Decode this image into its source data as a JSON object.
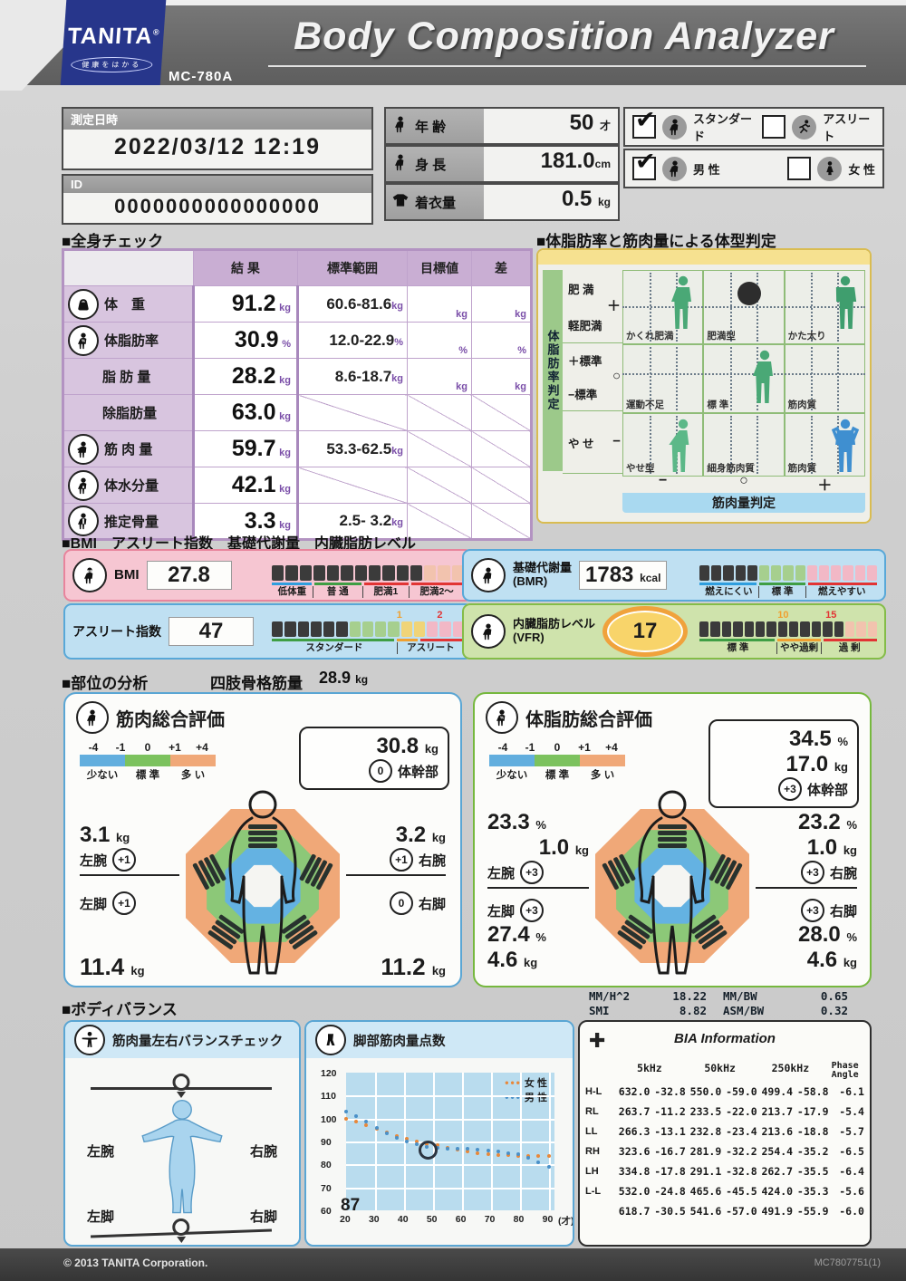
{
  "header": {
    "brand": "TANITA",
    "reg": "®",
    "tagline": "健康をはかる",
    "title": "Body Composition Analyzer",
    "model": "MC-780A"
  },
  "meta": {
    "datetime_label": "測定日時",
    "datetime": "2022/03/12  12:19",
    "id_label": "ID",
    "id": "0000000000000000",
    "age_label": "年 齢",
    "age": "50",
    "age_unit": "才",
    "height_label": "身 長",
    "height": "181.0",
    "height_unit": "cm",
    "clothes_label": "着衣量",
    "clothes": "0.5",
    "clothes_unit": "kg",
    "mode_standard": "スタンダード",
    "mode_athlete": "アスリート",
    "male": "男 性",
    "female": "女 性"
  },
  "whole_body": {
    "title": "■全身チェック",
    "headers": [
      "結 果",
      "標準範囲",
      "目標値",
      "差"
    ],
    "rows": [
      {
        "icon": "weight-icon",
        "label": "体　重",
        "result": "91.2",
        "unit": "kg",
        "range": "60.6-81.6",
        "has_units": true
      },
      {
        "icon": "fat-icon",
        "label": "体脂肪率",
        "result": "30.9",
        "unit": "%",
        "range": "12.0-22.9",
        "has_units": true
      },
      {
        "icon": null,
        "dashed": true,
        "label": "脂 肪 量",
        "result": "28.2",
        "unit": "kg",
        "range": "8.6-18.7",
        "has_units": true
      },
      {
        "icon": null,
        "label": "除脂肪量",
        "result": "63.0",
        "unit": "kg",
        "range": null,
        "has_units": false
      },
      {
        "icon": "muscle-icon",
        "label": "筋 肉 量",
        "result": "59.7",
        "unit": "kg",
        "range": "53.3-62.5",
        "has_units": false
      },
      {
        "icon": "water-icon",
        "label": "体水分量",
        "result": "42.1",
        "unit": "kg",
        "range": null,
        "has_units": false
      },
      {
        "icon": "bone-icon",
        "label": "推定骨量",
        "result": "3.3",
        "unit": "kg",
        "range": "2.5- 3.2",
        "has_units": false
      }
    ]
  },
  "body_type": {
    "title": "■体脂肪率と筋肉量による体型判定",
    "y_axis": "体脂肪率判定",
    "y_rows": [
      {
        "labels": [
          "肥 満",
          "軽肥満"
        ],
        "sign": "＋"
      },
      {
        "labels": [
          "＋標準",
          "−標準"
        ],
        "sign": "○"
      },
      {
        "labels": [
          "や せ"
        ],
        "sign": "−"
      }
    ],
    "cells": [
      {
        "label": "かくれ肥満",
        "fig": "stand-green"
      },
      {
        "label": "肥満型",
        "dot": true
      },
      {
        "label": "かた太り",
        "fig": "strong-green"
      },
      {
        "label": "運動不足"
      },
      {
        "label": "標 準",
        "fig": "stand-green"
      },
      {
        "label": "筋肉質"
      },
      {
        "label": "やせ型",
        "fig": "thin-green"
      },
      {
        "label": "細身筋肉質"
      },
      {
        "label": "筋肉質",
        "fig": "flex-blue"
      }
    ],
    "x_signs": [
      "−",
      "○",
      "＋"
    ],
    "x_axis": "筋肉量判定"
  },
  "indices": {
    "section_title": "■BMI　アスリート指数　基礎代謝量　内臓脂肪レベル",
    "bmi": {
      "label": "BMI",
      "value": "27.8",
      "bar": {
        "segments": [
          [
            "#3b3b3b",
            11
          ],
          [
            "#f2c3ae",
            3
          ]
        ],
        "strips": [
          [
            "#2f9ede",
            3
          ],
          [
            "#3f9e44",
            3.6
          ],
          [
            "#e23434",
            3.4
          ],
          [
            "#e23434",
            4
          ]
        ],
        "labels": [
          {
            "t": "低体重",
            "f": 3
          },
          {
            "t": "普 通",
            "f": 3.6
          },
          {
            "t": "肥満1",
            "f": 3.4
          },
          {
            "t": "肥満2～",
            "f": 4
          }
        ],
        "markers": []
      }
    },
    "athlete": {
      "label": "アスリート指数",
      "value": "47",
      "bar": {
        "segments": [
          [
            "#3b3b3b",
            6
          ],
          [
            "#a6cf8e",
            4
          ],
          [
            "#f0d478",
            2
          ],
          [
            "#f2b8c6",
            3
          ]
        ],
        "strips": [
          [
            "#3f9e44",
            9.8
          ],
          [
            "#f0a030",
            1.7
          ],
          [
            "#e23434",
            3.5
          ]
        ],
        "labels": [
          {
            "t": "スタンダード",
            "f": 9.8
          },
          {
            "t": "アスリート",
            "f": 5.2
          }
        ],
        "markers": [
          {
            "t": "1",
            "c": "#f0a030",
            "l": "65%"
          },
          {
            "t": "2",
            "c": "#e23434",
            "l": "86%"
          }
        ]
      }
    },
    "bmr": {
      "label": "基礎代謝量",
      "sublabel": "(BMR)",
      "value": "1783",
      "unit": "kcal",
      "bar": {
        "segments": [
          [
            "#3b3b3b",
            5
          ],
          [
            "#a6cf8e",
            4
          ],
          [
            "#f2b8c6",
            6
          ]
        ],
        "strips": [
          [
            "#2f9ede",
            5
          ],
          [
            "#3f9e44",
            4
          ],
          [
            "#e23434",
            6
          ]
        ],
        "labels": [
          {
            "t": "燃えにくい",
            "f": 5
          },
          {
            "t": "標 準",
            "f": 4
          },
          {
            "t": "燃えやすい",
            "f": 6
          }
        ],
        "markers": []
      }
    },
    "vfr": {
      "label": "内臓脂肪レベル",
      "sublabel": "(VFR)",
      "value": "17",
      "bar": {
        "segments": [
          [
            "#3b3b3b",
            13
          ],
          [
            "#f2c3ae",
            3
          ]
        ],
        "strips": [
          [
            "#3f9e44",
            7
          ],
          [
            "#f0a030",
            4
          ],
          [
            "#e23434",
            5
          ]
        ],
        "labels": [
          {
            "t": "標 準",
            "f": 7
          },
          {
            "t": "やや過剰",
            "f": 4
          },
          {
            "t": "過 剰",
            "f": 5
          }
        ],
        "markers": [
          {
            "t": "10",
            "c": "#f0a030",
            "l": "44%"
          },
          {
            "t": "15",
            "c": "#e23434",
            "l": "71%"
          }
        ]
      }
    }
  },
  "segmental": {
    "section_title": "■部位の分析",
    "asmm_label": "四肢骨格筋量",
    "asmm_value": "28.9",
    "asmm_unit": "kg",
    "legend": {
      "ticks": [
        "-4",
        "-1",
        "0",
        "+1",
        "+4"
      ],
      "labels": [
        "少ない",
        "標 準",
        "多 い"
      ]
    },
    "muscle": {
      "title": "筋肉総合評価",
      "trunk": {
        "value": "30.8",
        "unit": "kg",
        "score": "0",
        "label": "体幹部"
      },
      "left_arm": {
        "value": "3.1",
        "unit": "kg",
        "score": "+1",
        "label": "左腕"
      },
      "right_arm": {
        "value": "3.2",
        "unit": "kg",
        "score": "+1",
        "label": "右腕"
      },
      "left_leg": {
        "value": "11.4",
        "unit": "kg",
        "score": "+1",
        "label": "左脚"
      },
      "right_leg": {
        "value": "11.2",
        "unit": "kg",
        "score": "0",
        "label": "右脚"
      }
    },
    "fat": {
      "title": "体脂肪総合評価",
      "trunk": {
        "pct": "34.5",
        "pct_unit": "%",
        "value": "17.0",
        "unit": "kg",
        "score": "+3",
        "label": "体幹部"
      },
      "left_arm": {
        "pct": "23.3",
        "pct_unit": "%",
        "value": "1.0",
        "unit": "kg",
        "score": "+3",
        "label": "左腕"
      },
      "right_arm": {
        "pct": "23.2",
        "pct_unit": "%",
        "value": "1.0",
        "unit": "kg",
        "score": "+3",
        "label": "右腕"
      },
      "left_leg": {
        "pct": "27.4",
        "pct_unit": "%",
        "value": "4.6",
        "unit": "kg",
        "score": "+3",
        "label": "左脚"
      },
      "right_leg": {
        "pct": "28.0",
        "pct_unit": "%",
        "value": "4.6",
        "unit": "kg",
        "score": "+3",
        "label": "右脚"
      }
    },
    "stats": {
      "r1": [
        "MM/H^2",
        "18.22",
        "MM/BW",
        "0.65"
      ],
      "r2": [
        "SMI",
        "8.82",
        "ASM/BW",
        "0.32"
      ]
    }
  },
  "balance": {
    "section_title": "■ボディバランス",
    "title": "筋肉量左右バランスチェック",
    "left_arm": "左腕",
    "right_arm": "右腕",
    "left_leg": "左脚",
    "right_leg": "右脚"
  },
  "chart_data": {
    "type": "scatter",
    "title": "脚部筋肉量点数",
    "score": "87",
    "xlabel": "(才)",
    "x_ticks": [
      20,
      30,
      40,
      50,
      60,
      70,
      80,
      90
    ],
    "y_ticks": [
      60,
      70,
      80,
      90,
      100,
      110,
      120
    ],
    "xlim": [
      20,
      92
    ],
    "ylim": [
      60,
      120
    ],
    "grid": true,
    "legend_position": "top-right",
    "series": [
      {
        "name": "女 性",
        "color": "#e8883a",
        "points": [
          [
            20,
            100
          ],
          [
            23.5,
            98.5
          ],
          [
            27,
            97
          ],
          [
            30.5,
            95.5
          ],
          [
            34,
            94
          ],
          [
            37.5,
            92.5
          ],
          [
            41,
            91
          ],
          [
            44.5,
            90
          ],
          [
            48,
            89
          ],
          [
            51.5,
            88.3
          ],
          [
            55,
            87.2
          ],
          [
            58.5,
            86.3
          ],
          [
            62,
            85.6
          ],
          [
            65.5,
            85
          ],
          [
            69,
            84.6
          ],
          [
            72.5,
            84.2
          ],
          [
            76,
            84
          ],
          [
            79.5,
            83.8
          ],
          [
            83,
            83.7
          ],
          [
            86.5,
            83.6
          ],
          [
            90,
            83.5
          ]
        ]
      },
      {
        "name": "男 性",
        "color": "#4a90c8",
        "points": [
          [
            20,
            103
          ],
          [
            23.5,
            101
          ],
          [
            27,
            98.5
          ],
          [
            30.5,
            96
          ],
          [
            34,
            93.5
          ],
          [
            37.5,
            91.5
          ],
          [
            41,
            90
          ],
          [
            44.5,
            88.8
          ],
          [
            48,
            87.8
          ],
          [
            51.5,
            87.2
          ],
          [
            55,
            86.8
          ],
          [
            58.5,
            87
          ],
          [
            62,
            86.8
          ],
          [
            65.5,
            86.4
          ],
          [
            69,
            86
          ],
          [
            72.5,
            85.5
          ],
          [
            76,
            85
          ],
          [
            79.5,
            84.3
          ],
          [
            83,
            83
          ],
          [
            86.5,
            81
          ],
          [
            90,
            79
          ]
        ]
      }
    ],
    "marker": {
      "x": 48,
      "y": 87
    }
  },
  "bia": {
    "title": "BIA Information",
    "col_headers": [
      "5kHz",
      "50kHz",
      "250kHz"
    ],
    "phase_header": [
      "Phase",
      "Angle"
    ],
    "rows": [
      {
        "label": "H-L",
        "values": [
          "632.0",
          "-32.8",
          "550.0",
          "-59.0",
          "499.4",
          "-58.8",
          "-6.1"
        ]
      },
      {
        "label": "RL",
        "values": [
          "263.7",
          "-11.2",
          "233.5",
          "-22.0",
          "213.7",
          "-17.9",
          "-5.4"
        ]
      },
      {
        "label": "LL",
        "values": [
          "266.3",
          "-13.1",
          "232.8",
          "-23.4",
          "213.6",
          "-18.8",
          "-5.7"
        ]
      },
      {
        "label": "RH",
        "values": [
          "323.6",
          "-16.7",
          "281.9",
          "-32.2",
          "254.4",
          "-35.2",
          "-6.5"
        ]
      },
      {
        "label": "LH",
        "values": [
          "334.8",
          "-17.8",
          "291.1",
          "-32.8",
          "262.7",
          "-35.5",
          "-6.4"
        ]
      },
      {
        "label": "L-L",
        "values": [
          "532.0",
          "-24.8",
          "465.6",
          "-45.5",
          "424.0",
          "-35.3",
          "-5.6"
        ]
      },
      {
        "label": "",
        "values": [
          "618.7",
          "-30.5",
          "541.6",
          "-57.0",
          "491.9",
          "-55.9",
          "-6.0"
        ]
      }
    ]
  },
  "footer": {
    "copyright": "© 2013 TANITA Corporation.",
    "code": "MC7807751(1)"
  },
  "colors": {
    "accent_blue": "#5aa6d4",
    "accent_green": "#76b83e",
    "legend_blue": "#62aede",
    "legend_green": "#7cc25e",
    "legend_orange": "#f0a878"
  }
}
